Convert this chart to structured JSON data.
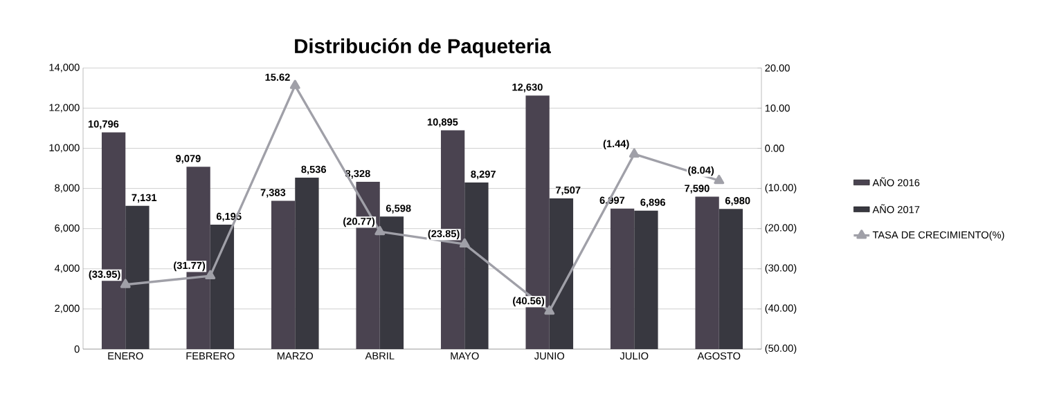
{
  "chart_data": {
    "type": "bar",
    "title": "Distribución de Paqueteria",
    "categories": [
      "ENERO",
      "FEBRERO",
      "MARZO",
      "ABRIL",
      "MAYO",
      "JUNIO",
      "JULIO",
      "AGOSTO"
    ],
    "series": [
      {
        "name": "AÑO 2016",
        "color": "#4a4350",
        "values": [
          10796,
          9079,
          7383,
          8328,
          10895,
          12630,
          6997,
          7590
        ],
        "value_labels": [
          "10,796",
          "9,079",
          "7,383",
          "8,328",
          "10,895",
          "12,630",
          "6,997",
          "7,590"
        ]
      },
      {
        "name": "AÑO 2017",
        "color": "#383840",
        "values": [
          7131,
          6195,
          8536,
          6598,
          8297,
          7507,
          6896,
          6980
        ],
        "value_labels": [
          "7,131",
          "6,195",
          "8,536",
          "6,598",
          "8,297",
          "7,507",
          "6,896",
          "6,980"
        ]
      },
      {
        "name": "TASA DE CRECIMIENTO(%)",
        "type": "line",
        "axis": "y2",
        "color": "#a0a0a8",
        "values": [
          -33.95,
          -31.77,
          15.62,
          -20.77,
          -23.85,
          -40.56,
          -1.44,
          -8.04
        ],
        "value_labels": [
          "(33.95)",
          "(31.77)",
          "15.62",
          "(20.77)",
          "(23.85)",
          "(40.56)",
          "(1.44)",
          "(8.04)"
        ]
      }
    ],
    "ylim": [
      0,
      14000
    ],
    "yticks": [
      0,
      {
        "value": 2000,
        "label": "2,000"
      },
      {
        "value": 4000,
        "label": "4,000"
      },
      {
        "value": 6000,
        "label": "6,000"
      },
      {
        "value": 8000,
        "label": "8,000"
      },
      {
        "value": 10000,
        "label": "10,000"
      },
      {
        "value": 12000,
        "label": "12,000"
      },
      {
        "value": 14000,
        "label": "14,000"
      }
    ],
    "y2lim": [
      -50,
      20
    ],
    "y2ticks": [
      {
        "value": -50,
        "label": "(50.00)"
      },
      {
        "value": -40,
        "label": "(40.00)"
      },
      {
        "value": -30,
        "label": "(30.00)"
      },
      {
        "value": -20,
        "label": "(20.00)"
      },
      {
        "value": -10,
        "label": "(10.00)"
      },
      {
        "value": 0,
        "label": "0.00"
      },
      {
        "value": 10,
        "label": "10.00"
      },
      {
        "value": 20,
        "label": "20.00"
      }
    ],
    "grid": "y",
    "legend": "right",
    "marker": "triangle",
    "line_style": "solid"
  }
}
